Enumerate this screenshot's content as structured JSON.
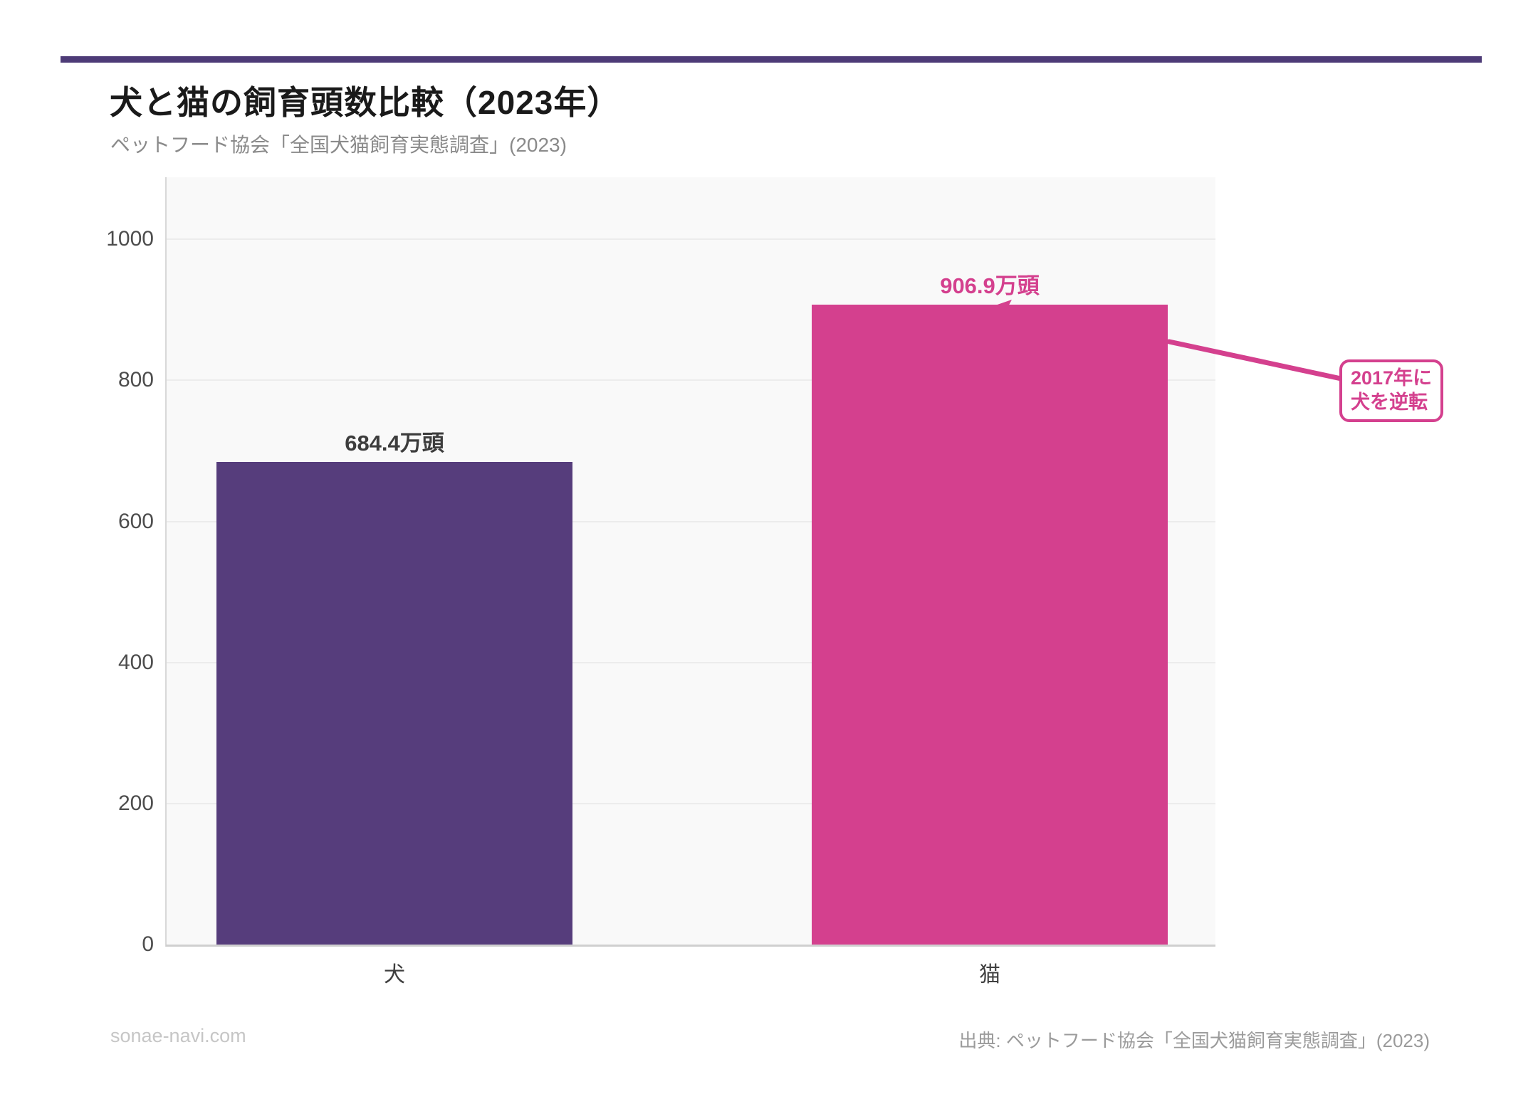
{
  "header": {
    "title": "犬と猫の飼育頭数比較（2023年）",
    "subtitle": "ペットフード協会「全国犬猫飼育実態調査」(2023)"
  },
  "footer": {
    "site": "sonae-navi.com",
    "source": "出典: ペットフード協会「全国犬猫飼育実態調査」(2023)"
  },
  "colors": {
    "accent_rule": "#4d3b77",
    "dog_bar": "#563d7c",
    "cat_bar": "#d4408e",
    "annotation_pink": "#d4408e",
    "dog_value_label": "#3d3d3d",
    "cat_value_label": "#d4408e",
    "plot_background": "#f9f9f9",
    "gridline": "#ececec"
  },
  "chart_data": {
    "type": "bar",
    "title": "犬と猫の飼育頭数比較（2023年）",
    "subtitle": "ペットフード協会「全国犬猫飼育実態調査」(2023)",
    "categories": [
      "犬",
      "猫"
    ],
    "values": [
      684.4,
      906.9
    ],
    "unit": "万頭",
    "bars": [
      {
        "category": "犬",
        "value": 684.4,
        "value_label": "684.4万頭",
        "color": "#563d7c",
        "label_color": "#3d3d3d"
      },
      {
        "category": "猫",
        "value": 906.9,
        "value_label": "906.9万頭",
        "color": "#d4408e",
        "label_color": "#d4408e"
      }
    ],
    "xlabel": "",
    "ylabel": "",
    "ylim": [
      0,
      1088
    ],
    "yticks": [
      0,
      200,
      400,
      600,
      800,
      1000
    ],
    "grid": true,
    "legend_position": "none",
    "annotation": {
      "lines": [
        "2017年に",
        "犬を逆転"
      ],
      "target_category": "猫"
    }
  }
}
